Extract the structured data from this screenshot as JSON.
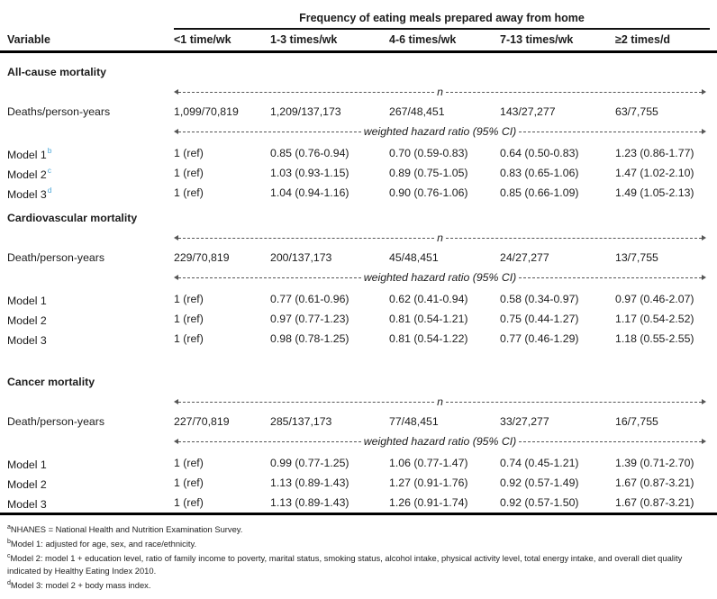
{
  "table": {
    "spanner": "Frequency of eating meals prepared away from home",
    "col_headers": [
      "Variable",
      "<1 time/wk",
      "1-3 times/wk",
      "4-6 times/wk",
      "7-13 times/wk",
      "≥2 times/d"
    ],
    "arrow_n_label": "n",
    "arrow_whr_label": "weighted hazard ratio (95% CI)",
    "colors": {
      "model_sup_blue": "#4fa8d8",
      "rule_black": "#000000",
      "text": "#1c1c1c"
    },
    "sections": [
      {
        "title": "All-cause mortality",
        "counts_label": "Deaths/person-years",
        "counts": [
          "1,099/70,819",
          "1,209/137,173",
          "267/48,451",
          "143/27,277",
          "63/7,755"
        ],
        "models": [
          {
            "label": "Model 1",
            "sup": "b",
            "values": [
              "1 (ref)",
              "0.85 (0.76-0.94)",
              "0.70 (0.59-0.83)",
              "0.64 (0.50-0.83)",
              "1.23 (0.86-1.77)"
            ]
          },
          {
            "label": "Model 2",
            "sup": "c",
            "values": [
              "1 (ref)",
              "1.03 (0.93-1.15)",
              "0.89 (0.75-1.05)",
              "0.83 (0.65-1.06)",
              "1.47 (1.02-2.10)"
            ]
          },
          {
            "label": "Model 3",
            "sup": "d",
            "values": [
              "1 (ref)",
              "1.04 (0.94-1.16)",
              "0.90 (0.76-1.06)",
              "0.85 (0.66-1.09)",
              "1.49 (1.05-2.13)"
            ]
          }
        ]
      },
      {
        "title": "Cardiovascular mortality",
        "counts_label": "Death/person-years",
        "counts": [
          "229/70,819",
          "200/137,173",
          "45/48,451",
          "24/27,277",
          "13/7,755"
        ],
        "models": [
          {
            "label": "Model 1",
            "sup": "",
            "values": [
              "1 (ref)",
              "0.77 (0.61-0.96)",
              "0.62 (0.41-0.94)",
              "0.58 (0.34-0.97)",
              "0.97 (0.46-2.07)"
            ]
          },
          {
            "label": "Model 2",
            "sup": "",
            "values": [
              "1 (ref)",
              "0.97 (0.77-1.23)",
              "0.81 (0.54-1.21)",
              "0.75 (0.44-1.27)",
              "1.17 (0.54-2.52)"
            ]
          },
          {
            "label": "Model 3",
            "sup": "",
            "values": [
              "1 (ref)",
              "0.98 (0.78-1.25)",
              "0.81 (0.54-1.22)",
              "0.77 (0.46-1.29)",
              "1.18 (0.55-2.55)"
            ]
          }
        ]
      },
      {
        "title": "Cancer mortality",
        "counts_label": "Death/person-years",
        "counts": [
          "227/70,819",
          "285/137,173",
          "77/48,451",
          "33/27,277",
          "16/7,755"
        ],
        "models": [
          {
            "label": "Model 1",
            "sup": "",
            "values": [
              "1 (ref)",
              "0.99 (0.77-1.25)",
              "1.06 (0.77-1.47)",
              "0.74 (0.45-1.21)",
              "1.39 (0.71-2.70)"
            ]
          },
          {
            "label": "Model 2",
            "sup": "",
            "values": [
              "1 (ref)",
              "1.13 (0.89-1.43)",
              "1.27 (0.91-1.76)",
              "0.92 (0.57-1.49)",
              "1.67 (0.87-3.21)"
            ]
          },
          {
            "label": "Model 3",
            "sup": "",
            "values": [
              "1 (ref)",
              "1.13 (0.89-1.43)",
              "1.26 (0.91-1.74)",
              "0.92 (0.57-1.50)",
              "1.67 (0.87-3.21)"
            ]
          }
        ]
      }
    ],
    "footnotes": [
      {
        "sup": "a",
        "text": "NHANES = National Health and Nutrition Examination Survey."
      },
      {
        "sup": "b",
        "text": "Model 1: adjusted for age, sex, and race/ethnicity."
      },
      {
        "sup": "c",
        "text": "Model 2: model 1 + education level, ratio of family income to poverty, marital status, smoking status, alcohol intake, physical activity level, total energy intake, and overall diet quality indicated by Healthy Eating Index 2010."
      },
      {
        "sup": "d",
        "text": "Model 3: model 2 + body mass index."
      }
    ]
  }
}
